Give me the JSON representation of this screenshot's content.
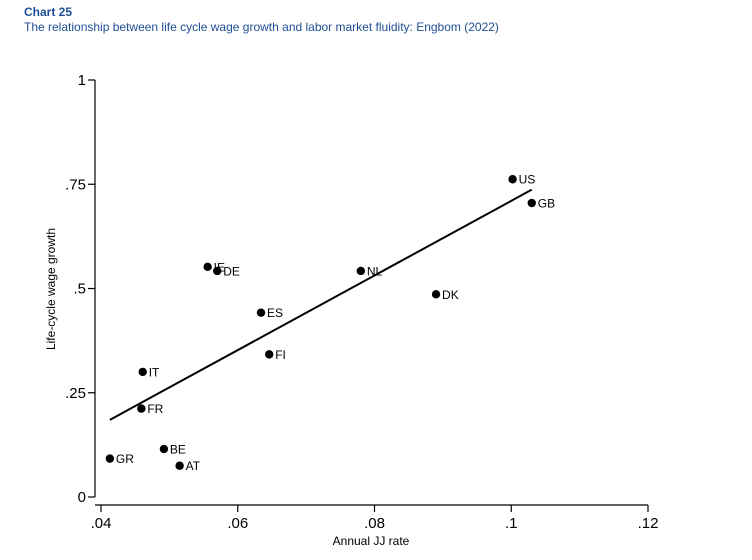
{
  "header": {
    "label": "Chart 25",
    "title": "The relationship between life cycle wage growth and labor market fluidity: Engbom (2022)"
  },
  "chart_data": {
    "type": "scatter",
    "xlabel": "Annual JJ rate",
    "ylabel": "Life-cycle wage growth",
    "xlim": [
      0.04,
      0.12
    ],
    "ylim": [
      0,
      1
    ],
    "x_ticks": [
      {
        "value": 0.04,
        "label": ".04"
      },
      {
        "value": 0.06,
        "label": ".06"
      },
      {
        "value": 0.08,
        "label": ".08"
      },
      {
        "value": 0.1,
        "label": ".1"
      },
      {
        "value": 0.12,
        "label": ".12"
      }
    ],
    "y_ticks": [
      {
        "value": 0,
        "label": "0"
      },
      {
        "value": 0.25,
        "label": ".25"
      },
      {
        "value": 0.5,
        "label": ".5"
      },
      {
        "value": 0.75,
        "label": ".75"
      },
      {
        "value": 1,
        "label": "1"
      }
    ],
    "points": [
      {
        "label": "US",
        "x": 0.1002,
        "y": 0.762
      },
      {
        "label": "GB",
        "x": 0.103,
        "y": 0.705
      },
      {
        "label": "NL",
        "x": 0.078,
        "y": 0.542
      },
      {
        "label": "DK",
        "x": 0.089,
        "y": 0.486
      },
      {
        "label": "IE",
        "x": 0.0556,
        "y": 0.552
      },
      {
        "label": "DE",
        "x": 0.057,
        "y": 0.542
      },
      {
        "label": "ES",
        "x": 0.0634,
        "y": 0.442
      },
      {
        "label": "FI",
        "x": 0.0646,
        "y": 0.342
      },
      {
        "label": "IT",
        "x": 0.0461,
        "y": 0.3
      },
      {
        "label": "FR",
        "x": 0.0459,
        "y": 0.212
      },
      {
        "label": "BE",
        "x": 0.0492,
        "y": 0.115
      },
      {
        "label": "AT",
        "x": 0.0515,
        "y": 0.075
      },
      {
        "label": "GR",
        "x": 0.0413,
        "y": 0.092
      }
    ],
    "fit_line": {
      "x": [
        0.0413,
        0.103
      ],
      "y": [
        0.185,
        0.737
      ]
    },
    "grid": false,
    "legend": "none"
  }
}
